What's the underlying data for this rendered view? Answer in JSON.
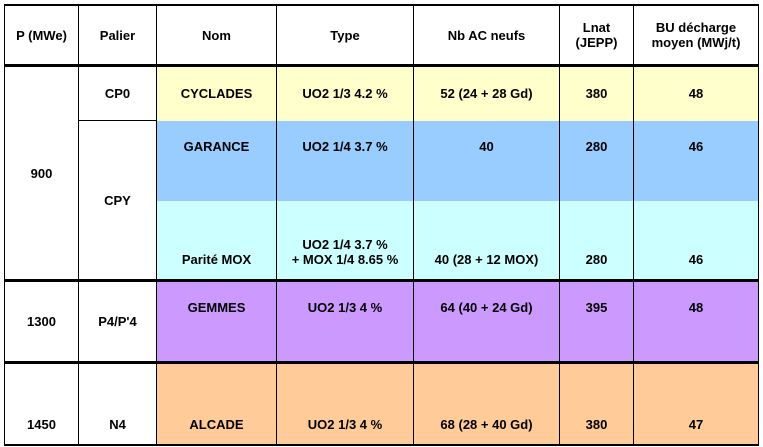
{
  "headers": [
    "P (MWe)",
    "Palier",
    "Nom",
    "Type",
    "Nb AC neufs",
    "Lnat\n(JEPP)",
    "BU décharge\nmoyen (MWj/t)"
  ],
  "rows": {
    "power_900": "900",
    "power_1300": "1300",
    "power_1450": "1450",
    "cp0": {
      "palier": "CP0",
      "nom": "CYCLADES",
      "type": "UO2 1/3 4.2 %",
      "nb": "52 (24 + 28 Gd)",
      "lnat": "380",
      "bu": "48"
    },
    "cpy_label": "CPY",
    "garance": {
      "nom": "GARANCE",
      "type": "UO2 1/4 3.7 %",
      "nb": "40",
      "lnat": "280",
      "bu": "46"
    },
    "parite": {
      "nom": "Parité MOX",
      "type_line1": "UO2 1/4 3.7 %",
      "type_line2": "+ MOX 1/4 8.65 %",
      "nb": "40 (28 + 12 MOX)",
      "lnat": "280",
      "bu": "46"
    },
    "gemmes": {
      "palier": "P4/P'4",
      "nom": "GEMMES",
      "type": "UO2 1/3 4 %",
      "nb": "64 (40 + 24 Gd)",
      "lnat": "395",
      "bu": "48"
    },
    "alcade": {
      "palier": "N4",
      "nom": "ALCADE",
      "type": "UO2 1/3 4 %",
      "nb": "68 (28 + 40 Gd)",
      "lnat": "380",
      "bu": "47"
    }
  },
  "colors": {
    "yellow": "#ffffcc",
    "blue": "#99ccff",
    "cyan": "#ccffff",
    "purple": "#cc99ff",
    "orange": "#ffcc99"
  }
}
